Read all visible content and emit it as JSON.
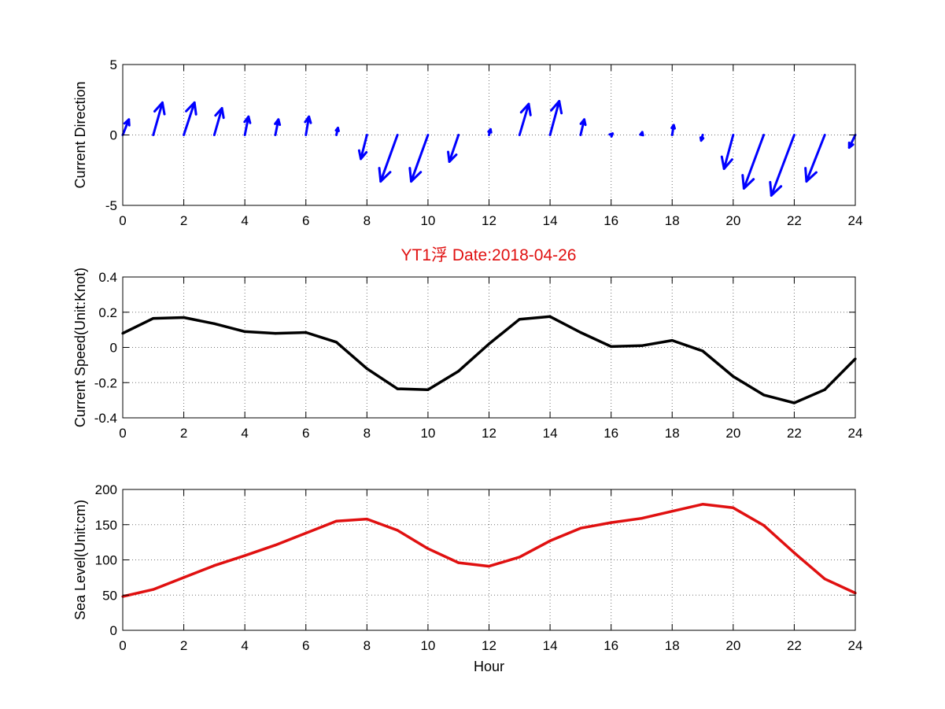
{
  "figure_title": "YT1浮    Date:2018-04-26",
  "title_color": "#e01010",
  "chart_data": [
    {
      "type": "quiver",
      "ylabel": "Current Direction",
      "xlim": [
        0,
        24
      ],
      "ylim": [
        -5,
        5
      ],
      "xticks": [
        0,
        2,
        4,
        6,
        8,
        10,
        12,
        14,
        16,
        18,
        20,
        22,
        24
      ],
      "yticks": [
        -5,
        0,
        5
      ],
      "grid": true,
      "color": "#0000ff",
      "x": [
        0,
        1,
        2,
        3,
        4,
        5,
        6,
        7,
        8,
        9,
        10,
        11,
        12,
        13,
        14,
        15,
        16,
        17,
        18,
        19,
        20,
        21,
        22,
        23,
        24
      ],
      "u": [
        0.2,
        0.3,
        0.35,
        0.25,
        0.12,
        0.1,
        0.1,
        0.05,
        -0.2,
        -0.55,
        -0.55,
        -0.3,
        0.05,
        0.3,
        0.3,
        0.12,
        0.05,
        0.02,
        0.05,
        -0.05,
        -0.3,
        -0.65,
        -0.75,
        -0.6,
        -0.2
      ],
      "v": [
        1.1,
        2.3,
        2.3,
        1.9,
        1.3,
        1.1,
        1.3,
        0.5,
        -1.7,
        -3.3,
        -3.3,
        -1.9,
        0.4,
        2.2,
        2.4,
        1.1,
        0.1,
        0.2,
        0.7,
        -0.4,
        -2.4,
        -3.8,
        -4.3,
        -3.3,
        -0.9
      ]
    },
    {
      "type": "line",
      "ylabel": "Current Speed(Unit:Knot)",
      "xlim": [
        0,
        24
      ],
      "ylim": [
        -0.4,
        0.4
      ],
      "xticks": [
        0,
        2,
        4,
        6,
        8,
        10,
        12,
        14,
        16,
        18,
        20,
        22,
        24
      ],
      "yticks": [
        -0.4,
        -0.2,
        0,
        0.2,
        0.4
      ],
      "grid": true,
      "color": "#000000",
      "x": [
        0,
        1,
        2,
        3,
        4,
        5,
        6,
        7,
        8,
        9,
        10,
        11,
        12,
        13,
        14,
        15,
        16,
        17,
        18,
        19,
        20,
        21,
        22,
        23,
        24
      ],
      "y": [
        0.08,
        0.165,
        0.17,
        0.135,
        0.09,
        0.08,
        0.085,
        0.03,
        -0.12,
        -0.235,
        -0.24,
        -0.135,
        0.02,
        0.16,
        0.175,
        0.085,
        0.005,
        0.01,
        0.04,
        -0.02,
        -0.165,
        -0.27,
        -0.315,
        -0.24,
        -0.065
      ]
    },
    {
      "type": "line",
      "ylabel": "Sea Level(Unit:cm)",
      "xlabel": "Hour",
      "xlim": [
        0,
        24
      ],
      "ylim": [
        0,
        200
      ],
      "xticks": [
        0,
        2,
        4,
        6,
        8,
        10,
        12,
        14,
        16,
        18,
        20,
        22,
        24
      ],
      "yticks": [
        0,
        50,
        100,
        150,
        200
      ],
      "grid": true,
      "color": "#e01010",
      "x": [
        0,
        1,
        2,
        3,
        4,
        5,
        6,
        7,
        8,
        9,
        10,
        11,
        12,
        13,
        14,
        15,
        16,
        17,
        18,
        19,
        20,
        21,
        22,
        23,
        24
      ],
      "y": [
        48,
        58,
        75,
        92,
        106,
        121,
        138,
        155,
        158,
        142,
        116,
        96,
        91,
        104,
        127,
        145,
        153,
        159,
        169,
        179,
        174,
        149,
        110,
        73,
        53
      ]
    }
  ]
}
